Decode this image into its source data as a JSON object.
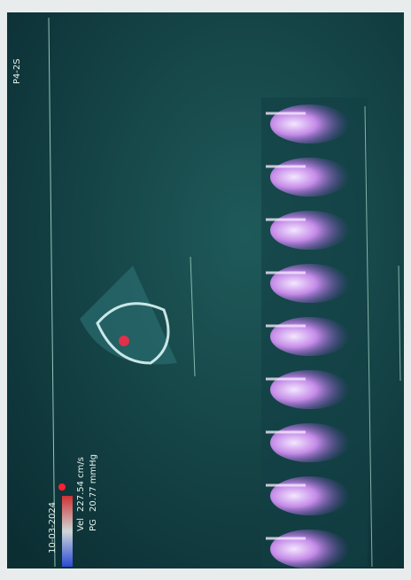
{
  "screen": {
    "date": "10-03-2024",
    "probe": "P4-2S",
    "measurements": [
      {
        "label": "Vel",
        "value": "227.54 cm/s"
      },
      {
        "label": "PG",
        "value": "20.77 mmHg"
      }
    ]
  }
}
